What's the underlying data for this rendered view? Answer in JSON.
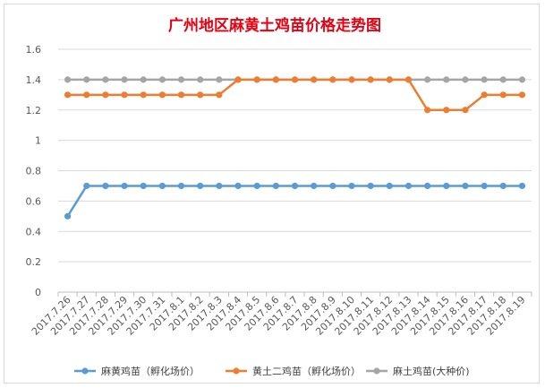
{
  "chart_data": {
    "type": "line",
    "title": "广州地区麻黄土鸡苗价格走势图",
    "xlabel": "",
    "ylabel": "",
    "ylim": [
      0,
      1.6
    ],
    "yticks": [
      "0",
      "0.2",
      "0.4",
      "0.6",
      "0.8",
      "1",
      "1.2",
      "1.4",
      "1.6"
    ],
    "ytick_values": [
      0,
      0.2,
      0.4,
      0.6,
      0.8,
      1.0,
      1.2,
      1.4,
      1.6
    ],
    "grid": true,
    "legend_position": "bottom",
    "categories": [
      "2017.7.26",
      "2017.7.27",
      "2017.7.28",
      "2017.7.29",
      "2017.7.30",
      "2017.7.31",
      "2017.8.1",
      "2017.8.2",
      "2017.8.3",
      "2017.8.4",
      "2017.8.5",
      "2017.8.6",
      "2017.8.7",
      "2017.8.8",
      "2017.8.9",
      "2017.8.10",
      "2017.8.11",
      "2017.8.12",
      "2017.8.13",
      "2017.8.14",
      "2017.8.15",
      "2017.8.16",
      "2017.8.17",
      "2017.8.18",
      "2017.8.19"
    ],
    "series": [
      {
        "name": "麻黄鸡苗（孵化场价）",
        "color": "#5b9bd5",
        "values": [
          0.5,
          0.7,
          0.7,
          0.7,
          0.7,
          0.7,
          0.7,
          0.7,
          0.7,
          0.7,
          0.7,
          0.7,
          0.7,
          0.7,
          0.7,
          0.7,
          0.7,
          0.7,
          0.7,
          0.7,
          0.7,
          0.7,
          0.7,
          0.7,
          0.7
        ]
      },
      {
        "name": "黄土二鸡苗（孵化场价）",
        "color": "#ed7d31",
        "values": [
          1.3,
          1.3,
          1.3,
          1.3,
          1.3,
          1.3,
          1.3,
          1.3,
          1.3,
          1.4,
          1.4,
          1.4,
          1.4,
          1.4,
          1.4,
          1.4,
          1.4,
          1.4,
          1.4,
          1.2,
          1.2,
          1.2,
          1.3,
          1.3,
          1.3
        ]
      },
      {
        "name": "麻土鸡苗(大种价)",
        "color": "#a5a5a5",
        "values": [
          1.4,
          1.4,
          1.4,
          1.4,
          1.4,
          1.4,
          1.4,
          1.4,
          1.4,
          1.4,
          1.4,
          1.4,
          1.4,
          1.4,
          1.4,
          1.4,
          1.4,
          1.4,
          1.4,
          1.4,
          1.4,
          1.4,
          1.4,
          1.4,
          1.4
        ]
      }
    ]
  }
}
